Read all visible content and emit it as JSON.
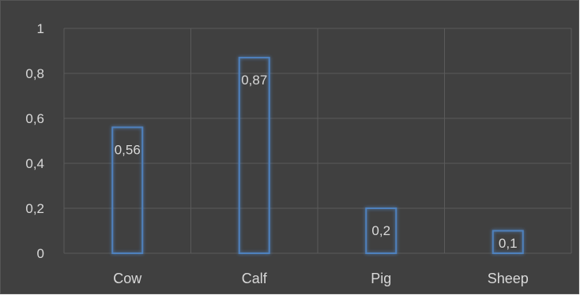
{
  "chart_data": {
    "type": "bar",
    "title": "",
    "xlabel": "",
    "ylabel": "",
    "categories": [
      "Cow",
      "Calf",
      "Pig",
      "Sheep"
    ],
    "values": [
      0.56,
      0.87,
      0.2,
      0.1
    ],
    "data_labels": [
      "0,56",
      "0,87",
      "0,2",
      "0,1"
    ],
    "ylim": [
      0,
      1
    ],
    "yticks": [
      0,
      0.2,
      0.4,
      0.6,
      0.8,
      1
    ],
    "ytick_labels": [
      "0",
      "0,2",
      "0,4",
      "0,6",
      "0,8",
      "1"
    ],
    "grid": true,
    "legend": "none",
    "colors": {
      "background": "#404040",
      "gridline": "#5a5a5a",
      "bar_outline": "#4f81bd",
      "bar_glow": "#6fa0e0",
      "text": "#d9d9d9"
    }
  }
}
